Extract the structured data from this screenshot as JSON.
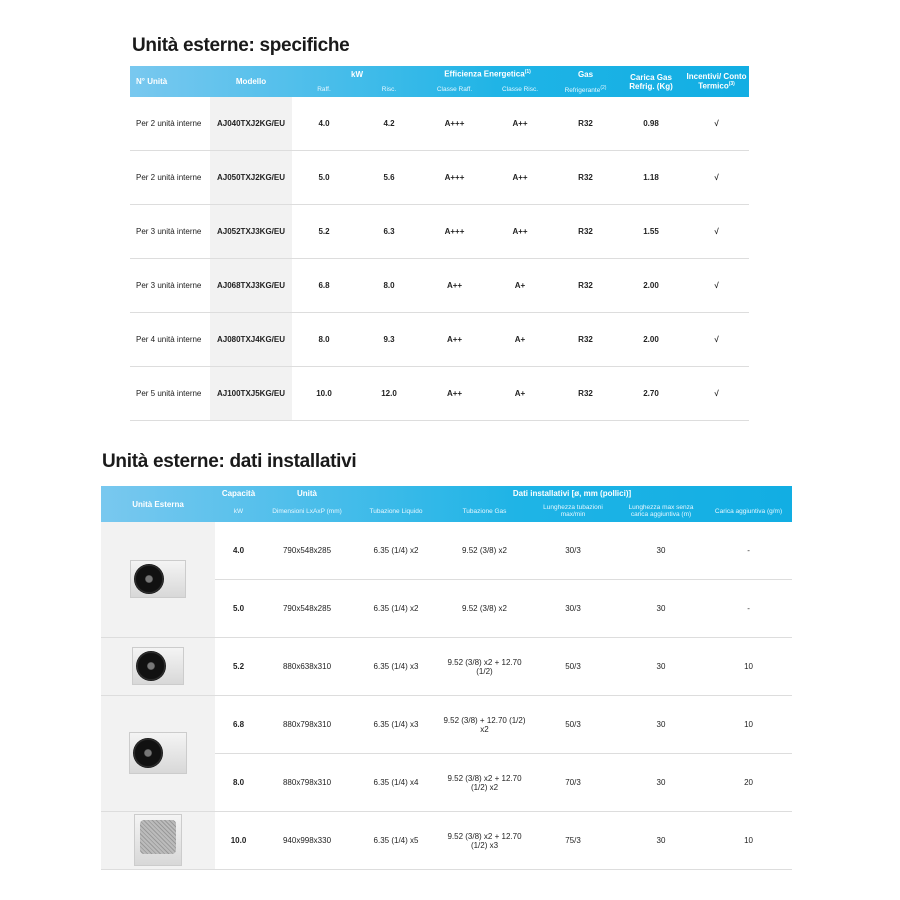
{
  "spec": {
    "title": "Unità esterne: specifiche",
    "headers": {
      "n_unita": "N° Unità",
      "modello": "Modello",
      "kw": "kW",
      "raff": "Raff.",
      "risc": "Risc.",
      "efficienza": "Efficienza Energetica",
      "efficienza_sup": "(1)",
      "classe_raff": "Classe Raff.",
      "classe_risc": "Classe Risc.",
      "gas": "Gas",
      "refrigerante": "Refrigerante",
      "refrigerante_sup": "(2)",
      "carica": "Carica Gas Refrig. (Kg)",
      "incentivi": "Incentivi/ Conto Termico",
      "incentivi_sup": "(3)"
    },
    "rows": [
      {
        "n": "Per 2 unità interne",
        "model": "AJ040TXJ2KG/EU",
        "raff": "4.0",
        "risc": "4.2",
        "cr": "A+++",
        "cs": "A++",
        "gas": "R32",
        "carica": "0.98",
        "inc": "√"
      },
      {
        "n": "Per 2 unità interne",
        "model": "AJ050TXJ2KG/EU",
        "raff": "5.0",
        "risc": "5.6",
        "cr": "A+++",
        "cs": "A++",
        "gas": "R32",
        "carica": "1.18",
        "inc": "√"
      },
      {
        "n": "Per 3 unità interne",
        "model": "AJ052TXJ3KG/EU",
        "raff": "5.2",
        "risc": "6.3",
        "cr": "A+++",
        "cs": "A++",
        "gas": "R32",
        "carica": "1.55",
        "inc": "√"
      },
      {
        "n": "Per 3 unità interne",
        "model": "AJ068TXJ3KG/EU",
        "raff": "6.8",
        "risc": "8.0",
        "cr": "A++",
        "cs": "A+",
        "gas": "R32",
        "carica": "2.00",
        "inc": "√"
      },
      {
        "n": "Per 4 unità interne",
        "model": "AJ080TXJ4KG/EU",
        "raff": "8.0",
        "risc": "9.3",
        "cr": "A++",
        "cs": "A+",
        "gas": "R32",
        "carica": "2.00",
        "inc": "√"
      },
      {
        "n": "Per 5 unità interne",
        "model": "AJ100TXJ5KG/EU",
        "raff": "10.0",
        "risc": "12.0",
        "cr": "A++",
        "cs": "A+",
        "gas": "R32",
        "carica": "2.70",
        "inc": "√"
      }
    ]
  },
  "install": {
    "title": "Unità esterne: dati installativi",
    "headers": {
      "unita_esterna": "Unità Esterna",
      "capacita": "Capacità",
      "kw": "kW",
      "unita": "Unità",
      "dimensioni": "Dimensioni LxAxP (mm)",
      "dati": "Dati installativi [ø, mm (pollici)]",
      "liquido": "Tubazione Liquido",
      "gas": "Tubazione Gas",
      "lunghezza": "Lunghezza tubazioni max/min",
      "lunghezza_max": "Lunghezza max senza carica aggiuntiva (m)",
      "carica": "Carica aggiuntiva (g/m)"
    },
    "rows": [
      {
        "cap": "4.0",
        "dim": "790x548x285",
        "liq": "6.35 (1/4) x2",
        "gas": "9.52 (3/8) x2",
        "len": "30/3",
        "max": "30",
        "car": "-"
      },
      {
        "cap": "5.0",
        "dim": "790x548x285",
        "liq": "6.35 (1/4) x2",
        "gas": "9.52 (3/8) x2",
        "len": "30/3",
        "max": "30",
        "car": "-"
      },
      {
        "cap": "5.2",
        "dim": "880x638x310",
        "liq": "6.35 (1/4) x3",
        "gas": "9.52 (3/8) x2 + 12.70 (1/2)",
        "len": "50/3",
        "max": "30",
        "car": "10"
      },
      {
        "cap": "6.8",
        "dim": "880x798x310",
        "liq": "6.35 (1/4) x3",
        "gas": "9.52 (3/8) + 12.70 (1/2) x2",
        "len": "50/3",
        "max": "30",
        "car": "10"
      },
      {
        "cap": "8.0",
        "dim": "880x798x310",
        "liq": "6.35 (1/4) x4",
        "gas": "9.52 (3/8) x2 + 12.70 (1/2) x2",
        "len": "70/3",
        "max": "30",
        "car": "20"
      },
      {
        "cap": "10.0",
        "dim": "940x998x330",
        "liq": "6.35 (1/4) x5",
        "gas": "9.52 (3/8) x2 + 12.70 (1/2) x3",
        "len": "75/3",
        "max": "30",
        "car": "10"
      }
    ]
  }
}
